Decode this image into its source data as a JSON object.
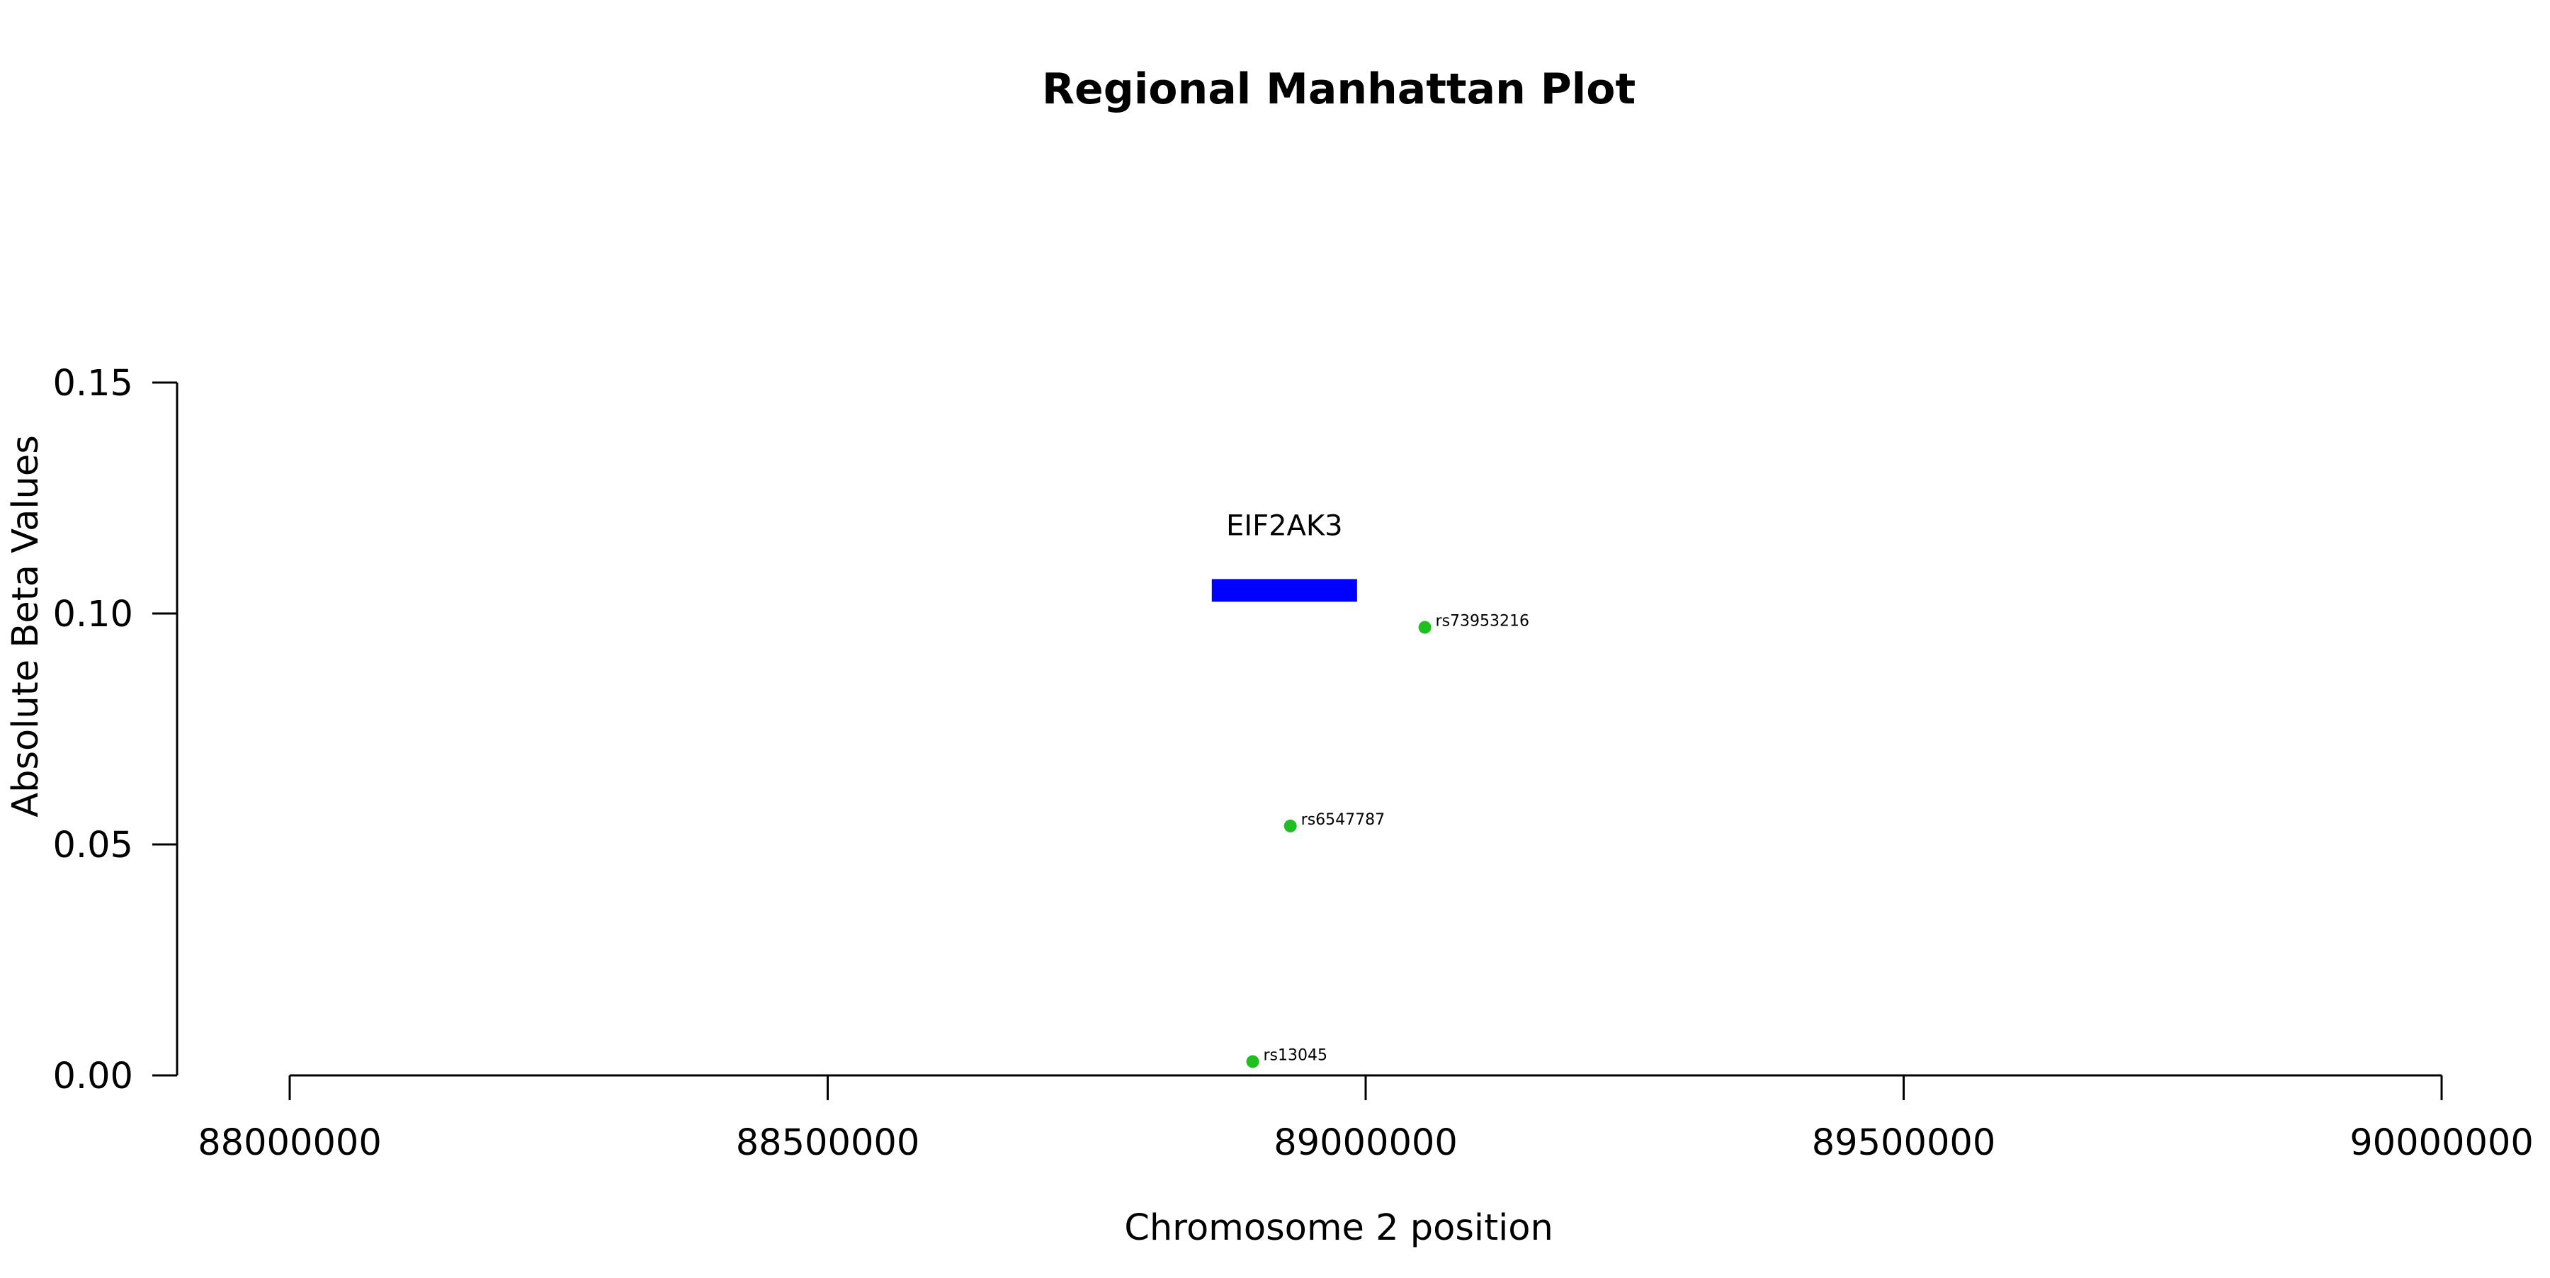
{
  "chart_data": {
    "type": "scatter",
    "title": "Regional Manhattan Plot",
    "xlabel": "Chromosome 2 position",
    "ylabel": "Absolute Beta Values",
    "xlim": [
      88000000,
      90000000
    ],
    "ylim": [
      0,
      0.15
    ],
    "x_ticks": [
      88000000,
      88500000,
      89000000,
      89500000,
      90000000
    ],
    "x_tick_labels": [
      "88000000",
      "88500000",
      "89000000",
      "89500000",
      "90000000"
    ],
    "y_ticks": [
      0,
      0.05,
      0.1,
      0.15
    ],
    "y_tick_labels": [
      "0.00",
      "0.05",
      "0.10",
      "0.15"
    ],
    "grid": false,
    "point_color": "#1fbf1f",
    "points": [
      {
        "label": "rs73953216",
        "x": 89055000,
        "y": 0.097
      },
      {
        "label": "rs6547787",
        "x": 88930000,
        "y": 0.054
      },
      {
        "label": "rs13045",
        "x": 88895000,
        "y": 0.003
      }
    ],
    "genes": [
      {
        "name": "EIF2AK3",
        "start": 88857000,
        "end": 88992000,
        "y": 0.105,
        "color": "#0000ff"
      }
    ]
  }
}
